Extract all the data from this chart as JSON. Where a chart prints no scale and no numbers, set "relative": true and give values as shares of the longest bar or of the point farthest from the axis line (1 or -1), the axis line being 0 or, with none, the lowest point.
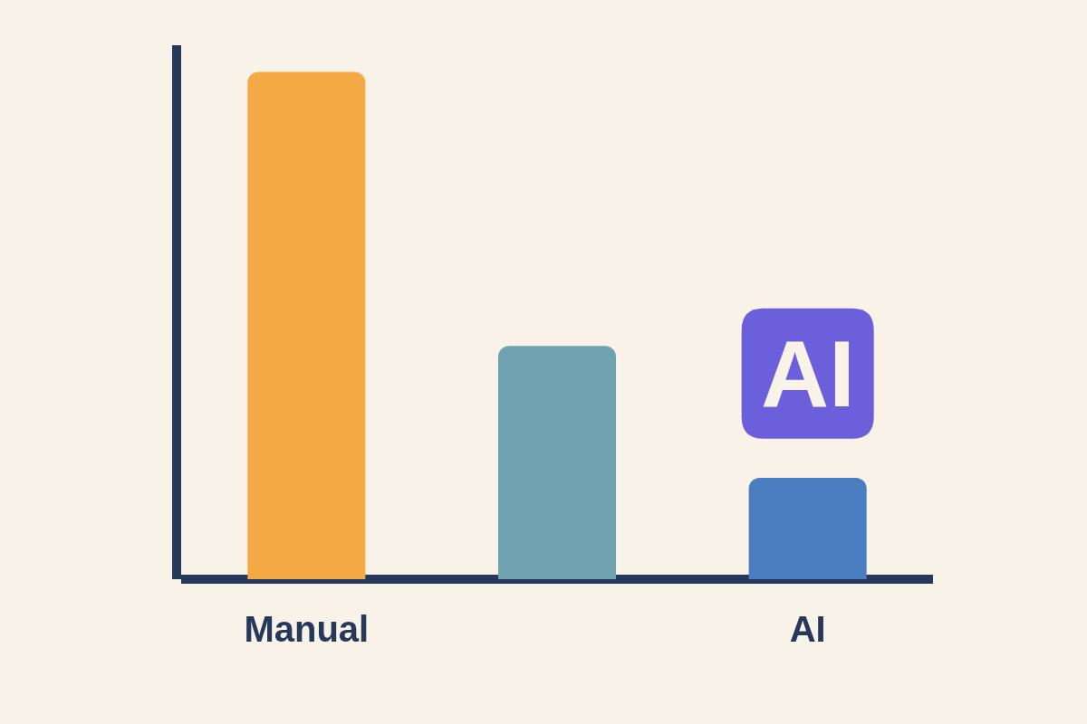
{
  "chart_data": {
    "type": "bar",
    "categories": [
      "Manual",
      null,
      "AI"
    ],
    "relative": true,
    "values": [
      1,
      0.46,
      0.2
    ],
    "colors": [
      "#f4a944",
      "#70a3b0",
      "#4a7ec0"
    ],
    "annotations": [
      "AI"
    ]
  }
}
